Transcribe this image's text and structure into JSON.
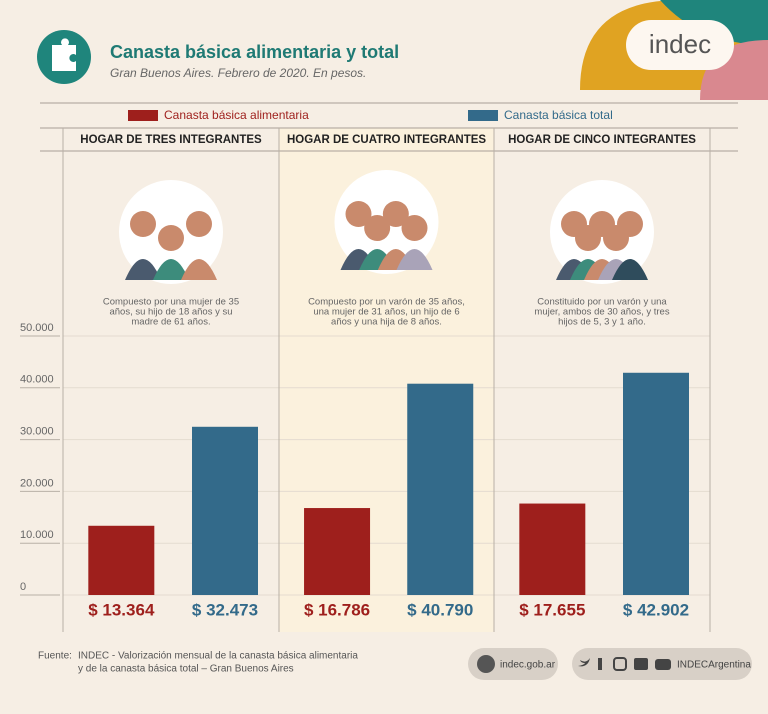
{
  "chart_data": {
    "type": "bar",
    "title": "Canasta básica alimentaria y total",
    "subtitle": "Gran Buenos Aires. Febrero de 2020. En pesos.",
    "categories": [
      "HOGAR DE TRES INTEGRANTES",
      "HOGAR DE CUATRO INTEGRANTES",
      "HOGAR DE CINCO INTEGRANTES"
    ],
    "descriptions": [
      [
        "Compuesto por una mujer de 35",
        "años, su hijo de 18 años y su",
        "madre de 61 años."
      ],
      [
        "Compuesto por un varón de 35 años,",
        "una mujer de 31 años, un hijo de 6",
        "años y una hija de 8 años."
      ],
      [
        "Constituido por un varón y una",
        "mujer, ambos de 30 años, y tres",
        "hijos de 5, 3 y 1 año."
      ]
    ],
    "series": [
      {
        "name": "Canasta básica alimentaria",
        "color": "#9e1f1c",
        "values": [
          13364,
          16786,
          17655
        ],
        "value_labels": [
          "$ 13.364",
          "$ 16.786",
          "$ 17.655"
        ]
      },
      {
        "name": "Canasta básica total",
        "color": "#336a8a",
        "values": [
          32473,
          40790,
          42902
        ],
        "value_labels": [
          "$ 32.473",
          "$ 40.790",
          "$ 42.902"
        ]
      }
    ],
    "ylim": [
      0,
      50000
    ],
    "yticks": [
      0,
      {
        "value": 10000,
        "label": "10.000"
      },
      {
        "value": 20000,
        "label": "20.000"
      },
      {
        "value": 30000,
        "label": "30.000"
      },
      {
        "value": 40000,
        "label": "40.000"
      },
      {
        "value": 50000,
        "label": "50.000"
      }
    ],
    "grid": true
  },
  "logo": "indec",
  "source": [
    "Fuente:",
    "INDEC - Valorización mensual de la canasta básica alimentaria",
    "y de la canasta básica total – Gran Buenos Aires"
  ],
  "website": "indec.gob.ar",
  "social": "INDECArgentina"
}
